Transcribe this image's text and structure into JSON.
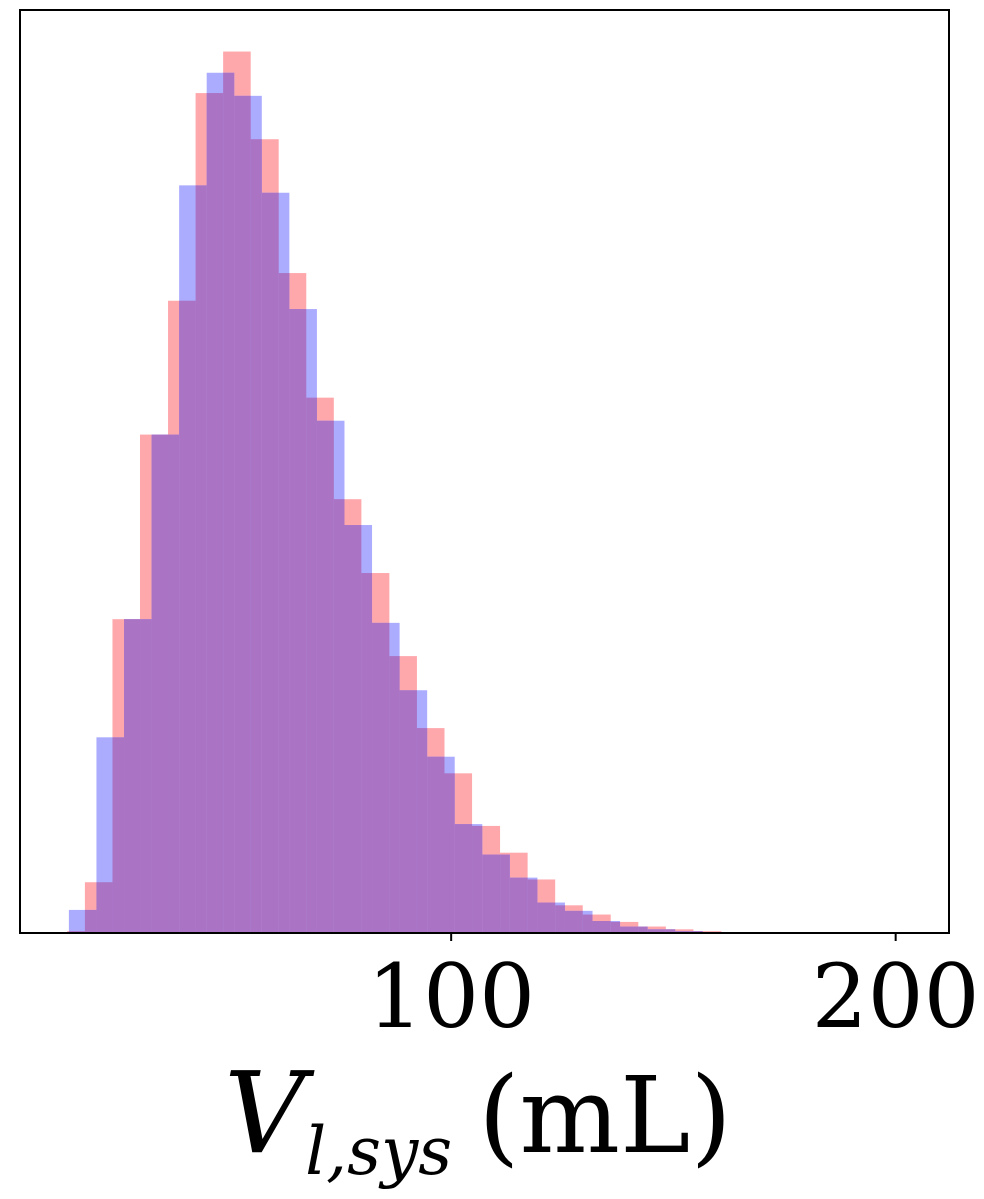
{
  "chart_data": {
    "type": "bar",
    "title": "",
    "xlabel": {
      "symbol": "V",
      "subscript": "l,sys",
      "unit": "(mL)"
    },
    "ylabel": "",
    "xlim": [
      3,
      212
    ],
    "ylim": [
      0,
      1.0
    ],
    "x_ticks": [
      100,
      200
    ],
    "x_tick_labels": [
      "100",
      "200"
    ],
    "y_ticks_visible": false,
    "grid": false,
    "legend": "none",
    "overlap_color": "#ab73c4",
    "series": [
      {
        "color": "#ff9ea3",
        "opacity": 0.9,
        "bin_width": 6.2,
        "bins": [
          {
            "x0": 13.6,
            "x1": 17.6,
            "value": 0.002
          },
          {
            "x0": 17.6,
            "x1": 23.8,
            "value": 0.055
          },
          {
            "x0": 23.8,
            "x1": 30.0,
            "value": 0.34
          },
          {
            "x0": 30.0,
            "x1": 36.3,
            "value": 0.54
          },
          {
            "x0": 36.3,
            "x1": 42.5,
            "value": 0.685
          },
          {
            "x0": 42.5,
            "x1": 48.7,
            "value": 0.91
          },
          {
            "x0": 48.7,
            "x1": 54.9,
            "value": 0.955
          },
          {
            "x0": 54.9,
            "x1": 61.2,
            "value": 0.86
          },
          {
            "x0": 61.2,
            "x1": 67.4,
            "value": 0.715
          },
          {
            "x0": 67.4,
            "x1": 73.6,
            "value": 0.58
          },
          {
            "x0": 73.6,
            "x1": 79.8,
            "value": 0.47
          },
          {
            "x0": 79.8,
            "x1": 86.1,
            "value": 0.39
          },
          {
            "x0": 86.1,
            "x1": 92.3,
            "value": 0.3
          },
          {
            "x0": 92.3,
            "x1": 98.5,
            "value": 0.222
          },
          {
            "x0": 98.5,
            "x1": 104.7,
            "value": 0.173
          },
          {
            "x0": 104.7,
            "x1": 111.0,
            "value": 0.116
          },
          {
            "x0": 111.0,
            "x1": 117.2,
            "value": 0.087
          },
          {
            "x0": 117.2,
            "x1": 123.4,
            "value": 0.058
          },
          {
            "x0": 123.4,
            "x1": 129.6,
            "value": 0.03
          },
          {
            "x0": 129.6,
            "x1": 135.9,
            "value": 0.02
          },
          {
            "x0": 135.9,
            "x1": 142.1,
            "value": 0.012
          },
          {
            "x0": 142.1,
            "x1": 148.3,
            "value": 0.007
          },
          {
            "x0": 148.3,
            "x1": 154.5,
            "value": 0.004
          },
          {
            "x0": 154.5,
            "x1": 160.8,
            "value": 0.002
          }
        ]
      },
      {
        "color": "#a3a3ff",
        "opacity": 0.9,
        "bin_width": 6.2,
        "bins": [
          {
            "x0": 14.0,
            "x1": 20.2,
            "value": 0.025
          },
          {
            "x0": 20.2,
            "x1": 26.4,
            "value": 0.212
          },
          {
            "x0": 26.4,
            "x1": 32.6,
            "value": 0.34
          },
          {
            "x0": 32.6,
            "x1": 38.8,
            "value": 0.54
          },
          {
            "x0": 38.8,
            "x1": 45.0,
            "value": 0.81
          },
          {
            "x0": 45.0,
            "x1": 51.2,
            "value": 0.932
          },
          {
            "x0": 51.2,
            "x1": 57.4,
            "value": 0.907
          },
          {
            "x0": 57.4,
            "x1": 63.6,
            "value": 0.802
          },
          {
            "x0": 63.6,
            "x1": 69.8,
            "value": 0.676
          },
          {
            "x0": 69.8,
            "x1": 76.0,
            "value": 0.555
          },
          {
            "x0": 76.0,
            "x1": 82.2,
            "value": 0.442
          },
          {
            "x0": 82.2,
            "x1": 88.4,
            "value": 0.336
          },
          {
            "x0": 88.4,
            "x1": 94.6,
            "value": 0.263
          },
          {
            "x0": 94.6,
            "x1": 100.8,
            "value": 0.191
          },
          {
            "x0": 100.8,
            "x1": 107.0,
            "value": 0.118
          },
          {
            "x0": 107.0,
            "x1": 113.2,
            "value": 0.085
          },
          {
            "x0": 113.2,
            "x1": 119.4,
            "value": 0.06
          },
          {
            "x0": 119.4,
            "x1": 125.6,
            "value": 0.033
          },
          {
            "x0": 125.6,
            "x1": 131.8,
            "value": 0.024
          },
          {
            "x0": 131.8,
            "x1": 138.0,
            "value": 0.013
          },
          {
            "x0": 138.0,
            "x1": 144.2,
            "value": 0.007
          },
          {
            "x0": 144.2,
            "x1": 150.4,
            "value": 0.004
          },
          {
            "x0": 150.4,
            "x1": 156.6,
            "value": 0.002
          }
        ]
      }
    ]
  }
}
